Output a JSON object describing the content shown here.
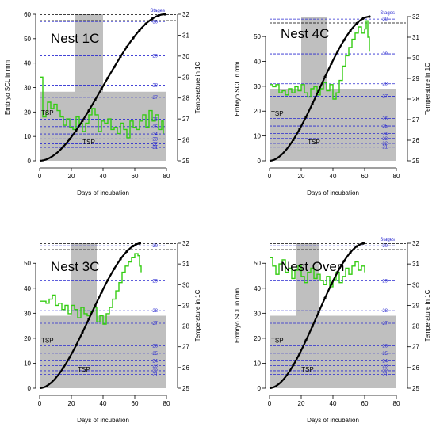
{
  "chart_data": [
    {
      "type": "line",
      "title": "Nest 1C",
      "xlabel": "Days of incubation",
      "ylabel": "Embryo SCL in mm",
      "y2label": "Temperature in 1C",
      "xlim": [
        0,
        80
      ],
      "ylim": [
        0,
        60
      ],
      "y2lim": [
        25,
        32
      ],
      "xticks": [
        0,
        20,
        40,
        60,
        80
      ],
      "yticks": [
        0,
        10,
        20,
        30,
        40,
        50,
        60
      ],
      "y2ticks": [
        25,
        26,
        27,
        28,
        29,
        30,
        31,
        32
      ],
      "stages_label": "Stages",
      "stages": [
        {
          "label": "21",
          "y": 5.5
        },
        {
          "label": "22",
          "y": 7
        },
        {
          "label": "23",
          "y": 9
        },
        {
          "label": "24",
          "y": 11
        },
        {
          "label": "25",
          "y": 14
        },
        {
          "label": "26",
          "y": 17
        },
        {
          "label": "27",
          "y": 26
        },
        {
          "label": "28",
          "y": 31
        },
        {
          "label": "29",
          "y": 43
        },
        {
          "label": "30",
          "y": 57
        }
      ],
      "tsp_label": "TSP",
      "tsp_days": [
        22,
        40
      ],
      "tsp_temp": [
        25,
        28.3
      ],
      "growth_end_day": 79,
      "temperature": [
        [
          0,
          29
        ],
        [
          1,
          29
        ],
        [
          2,
          27.1
        ],
        [
          4,
          27.3
        ],
        [
          5,
          27.8
        ],
        [
          7,
          27.5
        ],
        [
          9,
          27.7
        ],
        [
          11,
          27.4
        ],
        [
          13,
          27.1
        ],
        [
          15,
          26.7
        ],
        [
          17,
          27
        ],
        [
          19,
          26.6
        ],
        [
          21,
          26.5
        ],
        [
          23,
          27.1
        ],
        [
          25,
          26.8
        ],
        [
          27,
          26.4
        ],
        [
          29,
          26.8
        ],
        [
          31,
          27.2
        ],
        [
          33,
          27.5
        ],
        [
          35,
          27.2
        ],
        [
          37,
          26.4
        ],
        [
          39,
          26.9
        ],
        [
          41,
          26.8
        ],
        [
          43,
          27
        ],
        [
          45,
          26.5
        ],
        [
          47,
          26.6
        ],
        [
          49,
          26.3
        ],
        [
          51,
          26.8
        ],
        [
          53,
          26.5
        ],
        [
          55,
          26.1
        ],
        [
          57,
          26.9
        ],
        [
          59,
          26.6
        ],
        [
          61,
          26.5
        ],
        [
          63,
          26.9
        ],
        [
          65,
          27.2
        ],
        [
          67,
          26.6
        ],
        [
          69,
          27.4
        ],
        [
          71,
          26.9
        ],
        [
          73,
          27.2
        ],
        [
          75,
          26.5
        ],
        [
          77,
          26.9
        ],
        [
          78,
          26.3
        ]
      ]
    },
    {
      "type": "line",
      "title": "Nest 4C",
      "xlabel": "Days of incubation",
      "ylabel": "Embryo SCL in mm",
      "y2label": "Temperature in 1C",
      "xlim": [
        0,
        80
      ],
      "ylim": [
        0,
        58
      ],
      "y2lim": [
        25,
        32
      ],
      "xticks": [
        0,
        20,
        40,
        60,
        80
      ],
      "yticks": [
        0,
        10,
        20,
        30,
        40,
        50
      ],
      "y2ticks": [
        25,
        26,
        27,
        28,
        29,
        30,
        31,
        32
      ],
      "stages_label": "Stages",
      "stages": [
        {
          "label": "21",
          "y": 5.5
        },
        {
          "label": "22",
          "y": 7
        },
        {
          "label": "23",
          "y": 9
        },
        {
          "label": "24",
          "y": 11
        },
        {
          "label": "25",
          "y": 14
        },
        {
          "label": "26",
          "y": 17
        },
        {
          "label": "27",
          "y": 26
        },
        {
          "label": "28",
          "y": 31
        },
        {
          "label": "29",
          "y": 43
        },
        {
          "label": "30",
          "y": 57
        }
      ],
      "tsp_label": "TSP",
      "tsp_days": [
        20,
        36
      ],
      "tsp_temp": [
        25,
        28.5
      ],
      "growth_end_day": 63,
      "temperature": [
        [
          0,
          28.7
        ],
        [
          2,
          28.6
        ],
        [
          4,
          28.7
        ],
        [
          6,
          28.3
        ],
        [
          8,
          28.4
        ],
        [
          10,
          28.2
        ],
        [
          12,
          28.5
        ],
        [
          14,
          28.3
        ],
        [
          16,
          28.6
        ],
        [
          18,
          28.4
        ],
        [
          20,
          28.7
        ],
        [
          22,
          28.3
        ],
        [
          24,
          28.1
        ],
        [
          26,
          28.5
        ],
        [
          28,
          28.6
        ],
        [
          30,
          28.2
        ],
        [
          32,
          28.5
        ],
        [
          34,
          28.8
        ],
        [
          36,
          28.4
        ],
        [
          38,
          28.7
        ],
        [
          40,
          28
        ],
        [
          42,
          28.3
        ],
        [
          44,
          28.9
        ],
        [
          46,
          29.6
        ],
        [
          48,
          30.1
        ],
        [
          50,
          30.5
        ],
        [
          52,
          30.9
        ],
        [
          54,
          31.2
        ],
        [
          56,
          31.5
        ],
        [
          58,
          31.2
        ],
        [
          60,
          31.4
        ],
        [
          61,
          31.8
        ],
        [
          62,
          31
        ],
        [
          63,
          30.3
        ]
      ]
    },
    {
      "type": "line",
      "title": "Nest 3C",
      "xlabel": "Days of incubation",
      "ylabel": "",
      "y2label": "Temperature in 1C",
      "xlim": [
        0,
        80
      ],
      "ylim": [
        0,
        58
      ],
      "y2lim": [
        25,
        32
      ],
      "xticks": [
        0,
        20,
        40,
        60,
        80
      ],
      "yticks": [
        0,
        10,
        20,
        30,
        40,
        50
      ],
      "y2ticks": [
        25,
        26,
        27,
        28,
        29,
        30,
        31,
        32
      ],
      "stages_label": "",
      "stages": [
        {
          "label": "21",
          "y": 5.5
        },
        {
          "label": "22",
          "y": 7
        },
        {
          "label": "23",
          "y": 9
        },
        {
          "label": "24",
          "y": 11
        },
        {
          "label": "25",
          "y": 14
        },
        {
          "label": "26",
          "y": 17
        },
        {
          "label": "27",
          "y": 26
        },
        {
          "label": "28",
          "y": 31
        },
        {
          "label": "29",
          "y": 43
        },
        {
          "label": "30",
          "y": 57
        }
      ],
      "tsp_label": "TSP",
      "tsp_days": [
        20,
        36
      ],
      "tsp_temp": [
        25,
        28.5
      ],
      "growth_end_day": 64,
      "temperature": [
        [
          0,
          29.2
        ],
        [
          2,
          29.2
        ],
        [
          4,
          29.1
        ],
        [
          6,
          29.3
        ],
        [
          8,
          29.5
        ],
        [
          10,
          29
        ],
        [
          12,
          29.1
        ],
        [
          14,
          28.8
        ],
        [
          16,
          29
        ],
        [
          18,
          28.6
        ],
        [
          20,
          29
        ],
        [
          22,
          28.8
        ],
        [
          24,
          28.4
        ],
        [
          26,
          28.9
        ],
        [
          28,
          28.6
        ],
        [
          30,
          28.5
        ],
        [
          32,
          28.7
        ],
        [
          34,
          28.9
        ],
        [
          36,
          28.2
        ],
        [
          38,
          28.5
        ],
        [
          40,
          28.1
        ],
        [
          42,
          28.6
        ],
        [
          44,
          28.9
        ],
        [
          46,
          29.3
        ],
        [
          48,
          29.7
        ],
        [
          50,
          30.1
        ],
        [
          52,
          30.6
        ],
        [
          54,
          30.9
        ],
        [
          56,
          31.1
        ],
        [
          58,
          31.3
        ],
        [
          60,
          31.5
        ],
        [
          62,
          31.4
        ],
        [
          63,
          30.9
        ],
        [
          64,
          30.6
        ]
      ]
    },
    {
      "type": "line",
      "title": "Nest Oven",
      "xlabel": "Days of incubation",
      "ylabel": "Embryo SCL in mm",
      "y2label": "Temperature in 1C",
      "xlim": [
        0,
        80
      ],
      "ylim": [
        0,
        58
      ],
      "y2lim": [
        25,
        32
      ],
      "xticks": [
        0,
        20,
        40,
        60,
        80
      ],
      "yticks": [
        0,
        10,
        20,
        30,
        40,
        50
      ],
      "y2ticks": [
        25,
        26,
        27,
        28,
        29,
        30,
        31,
        32
      ],
      "stages_label": "Stages",
      "stages": [
        {
          "label": "21",
          "y": 5.5
        },
        {
          "label": "22",
          "y": 7
        },
        {
          "label": "23",
          "y": 9
        },
        {
          "label": "24",
          "y": 11
        },
        {
          "label": "25",
          "y": 14
        },
        {
          "label": "26",
          "y": 17
        },
        {
          "label": "27",
          "y": 26
        },
        {
          "label": "28",
          "y": 31
        },
        {
          "label": "29",
          "y": 43
        },
        {
          "label": "30",
          "y": 57
        }
      ],
      "tsp_label": "TSP",
      "tsp_days": [
        17,
        31
      ],
      "tsp_temp": [
        25,
        28.5
      ],
      "growth_end_day": 60,
      "temperature": [
        [
          0,
          31.3
        ],
        [
          2,
          30.9
        ],
        [
          4,
          30.5
        ],
        [
          6,
          31
        ],
        [
          8,
          31.2
        ],
        [
          10,
          30.6
        ],
        [
          12,
          30.8
        ],
        [
          14,
          30.3
        ],
        [
          16,
          30.7
        ],
        [
          18,
          30.9
        ],
        [
          20,
          30.4
        ],
        [
          22,
          30.1
        ],
        [
          24,
          30.6
        ],
        [
          26,
          30.8
        ],
        [
          28,
          30.3
        ],
        [
          30,
          30.5
        ],
        [
          32,
          30.2
        ],
        [
          34,
          30
        ],
        [
          36,
          30.4
        ],
        [
          38,
          29.9
        ],
        [
          40,
          30.2
        ],
        [
          42,
          30.6
        ],
        [
          44,
          30.1
        ],
        [
          46,
          30.4
        ],
        [
          48,
          30.8
        ],
        [
          50,
          30.5
        ],
        [
          52,
          30.9
        ],
        [
          54,
          31.1
        ],
        [
          56,
          30.7
        ],
        [
          58,
          30.9
        ],
        [
          60,
          30.6
        ]
      ]
    }
  ],
  "colors": {
    "temperature_line": "#33cc11",
    "growth_curve": "#000000",
    "stage_lines": "#2a2ad0",
    "tsp_fill": "#bfbfbf",
    "background": "#ffffff"
  }
}
